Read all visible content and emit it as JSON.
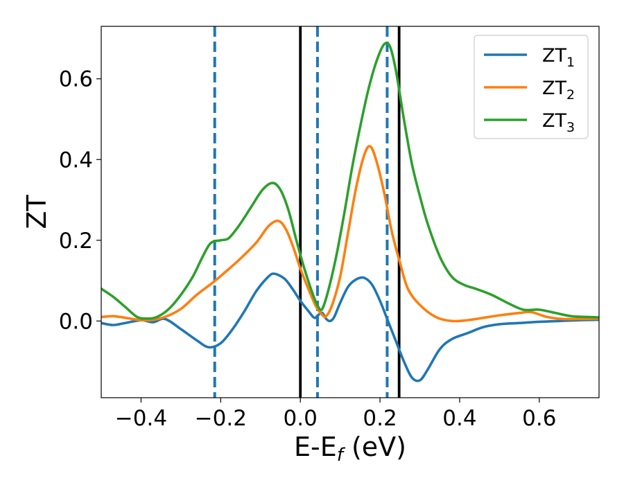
{
  "chart_data": {
    "type": "line",
    "title": "",
    "xlabel": "E-E",
    "xlabel_sub": "f",
    "xlabel_unit": "(eV)",
    "ylabel": "ZT",
    "xlim": [
      -0.5,
      0.75
    ],
    "ylim": [
      -0.19,
      0.73
    ],
    "xticks": [
      -0.4,
      -0.2,
      0.0,
      0.2,
      0.4,
      0.6
    ],
    "xtick_labels": [
      "−0.4",
      "−0.2",
      "0.0",
      "0.2",
      "0.4",
      "0.6"
    ],
    "yticks": [
      0.0,
      0.2,
      0.4,
      0.6
    ],
    "ytick_labels": [
      "0.0",
      "0.2",
      "0.4",
      "0.6"
    ],
    "grid": false,
    "legend_position": "top-right",
    "vlines": [
      {
        "x": -0.215,
        "style": "dashed",
        "color": "#1f77b4"
      },
      {
        "x": 0.043,
        "style": "dashed",
        "color": "#1f77b4"
      },
      {
        "x": 0.218,
        "style": "dashed",
        "color": "#1f77b4"
      },
      {
        "x": 0.0,
        "style": "solid",
        "color": "#000000"
      },
      {
        "x": 0.248,
        "style": "solid",
        "color": "#000000"
      }
    ],
    "series": [
      {
        "name": "ZT",
        "name_sub": "1",
        "color": "#1f77b4",
        "points": [
          [
            -0.5,
            -0.005
          ],
          [
            -0.47,
            -0.01
          ],
          [
            -0.44,
            -0.005
          ],
          [
            -0.4,
            0.002
          ],
          [
            -0.37,
            -0.003
          ],
          [
            -0.34,
            0.005
          ],
          [
            -0.3,
            -0.02
          ],
          [
            -0.26,
            -0.048
          ],
          [
            -0.23,
            -0.065
          ],
          [
            -0.2,
            -0.055
          ],
          [
            -0.17,
            -0.02
          ],
          [
            -0.14,
            0.025
          ],
          [
            -0.11,
            0.075
          ],
          [
            -0.08,
            0.11
          ],
          [
            -0.065,
            0.117
          ],
          [
            -0.04,
            0.105
          ],
          [
            -0.02,
            0.08
          ],
          [
            0.0,
            0.05
          ],
          [
            0.02,
            0.025
          ],
          [
            0.035,
            0.008
          ],
          [
            0.045,
            0.015
          ],
          [
            0.055,
            0.02
          ],
          [
            0.065,
            0.005
          ],
          [
            0.075,
            0.0
          ],
          [
            0.085,
            0.01
          ],
          [
            0.1,
            0.045
          ],
          [
            0.12,
            0.085
          ],
          [
            0.14,
            0.103
          ],
          [
            0.16,
            0.107
          ],
          [
            0.18,
            0.09
          ],
          [
            0.2,
            0.05
          ],
          [
            0.22,
            0.0
          ],
          [
            0.24,
            -0.05
          ],
          [
            0.26,
            -0.1
          ],
          [
            0.28,
            -0.14
          ],
          [
            0.3,
            -0.147
          ],
          [
            0.32,
            -0.12
          ],
          [
            0.35,
            -0.07
          ],
          [
            0.38,
            -0.045
          ],
          [
            0.42,
            -0.03
          ],
          [
            0.46,
            -0.015
          ],
          [
            0.5,
            -0.008
          ],
          [
            0.55,
            -0.005
          ],
          [
            0.6,
            -0.002
          ],
          [
            0.65,
            0.0
          ],
          [
            0.7,
            0.002
          ],
          [
            0.75,
            0.003
          ]
        ]
      },
      {
        "name": "ZT",
        "name_sub": "2",
        "color": "#ff7f0e",
        "points": [
          [
            -0.5,
            0.01
          ],
          [
            -0.47,
            0.012
          ],
          [
            -0.44,
            0.008
          ],
          [
            -0.4,
            0.002
          ],
          [
            -0.37,
            0.003
          ],
          [
            -0.34,
            0.01
          ],
          [
            -0.3,
            0.03
          ],
          [
            -0.26,
            0.065
          ],
          [
            -0.22,
            0.095
          ],
          [
            -0.19,
            0.12
          ],
          [
            -0.15,
            0.155
          ],
          [
            -0.11,
            0.195
          ],
          [
            -0.08,
            0.235
          ],
          [
            -0.055,
            0.248
          ],
          [
            -0.035,
            0.225
          ],
          [
            -0.015,
            0.175
          ],
          [
            0.0,
            0.13
          ],
          [
            0.02,
            0.08
          ],
          [
            0.04,
            0.035
          ],
          [
            0.055,
            0.015
          ],
          [
            0.065,
            0.012
          ],
          [
            0.08,
            0.04
          ],
          [
            0.1,
            0.11
          ],
          [
            0.12,
            0.22
          ],
          [
            0.14,
            0.33
          ],
          [
            0.16,
            0.41
          ],
          [
            0.175,
            0.433
          ],
          [
            0.19,
            0.4
          ],
          [
            0.21,
            0.32
          ],
          [
            0.23,
            0.22
          ],
          [
            0.25,
            0.145
          ],
          [
            0.27,
            0.08
          ],
          [
            0.3,
            0.04
          ],
          [
            0.34,
            0.01
          ],
          [
            0.38,
            0.0
          ],
          [
            0.42,
            0.002
          ],
          [
            0.46,
            0.008
          ],
          [
            0.5,
            0.014
          ],
          [
            0.55,
            0.02
          ],
          [
            0.58,
            0.022
          ],
          [
            0.62,
            0.01
          ],
          [
            0.66,
            0.005
          ],
          [
            0.7,
            0.005
          ],
          [
            0.75,
            0.006
          ]
        ]
      },
      {
        "name": "ZT",
        "name_sub": "3",
        "color": "#2ca02c",
        "points": [
          [
            -0.5,
            0.08
          ],
          [
            -0.47,
            0.06
          ],
          [
            -0.44,
            0.035
          ],
          [
            -0.41,
            0.01
          ],
          [
            -0.385,
            0.006
          ],
          [
            -0.36,
            0.01
          ],
          [
            -0.33,
            0.03
          ],
          [
            -0.3,
            0.065
          ],
          [
            -0.27,
            0.11
          ],
          [
            -0.245,
            0.16
          ],
          [
            -0.225,
            0.193
          ],
          [
            -0.2,
            0.2
          ],
          [
            -0.18,
            0.205
          ],
          [
            -0.155,
            0.235
          ],
          [
            -0.125,
            0.28
          ],
          [
            -0.095,
            0.325
          ],
          [
            -0.07,
            0.342
          ],
          [
            -0.05,
            0.325
          ],
          [
            -0.03,
            0.275
          ],
          [
            -0.01,
            0.2
          ],
          [
            0.01,
            0.13
          ],
          [
            0.03,
            0.07
          ],
          [
            0.045,
            0.035
          ],
          [
            0.055,
            0.03
          ],
          [
            0.07,
            0.075
          ],
          [
            0.09,
            0.16
          ],
          [
            0.11,
            0.265
          ],
          [
            0.13,
            0.38
          ],
          [
            0.15,
            0.48
          ],
          [
            0.17,
            0.57
          ],
          [
            0.19,
            0.64
          ],
          [
            0.21,
            0.685
          ],
          [
            0.225,
            0.68
          ],
          [
            0.24,
            0.62
          ],
          [
            0.26,
            0.5
          ],
          [
            0.28,
            0.39
          ],
          [
            0.3,
            0.31
          ],
          [
            0.32,
            0.24
          ],
          [
            0.35,
            0.16
          ],
          [
            0.38,
            0.11
          ],
          [
            0.41,
            0.09
          ],
          [
            0.44,
            0.08
          ],
          [
            0.48,
            0.065
          ],
          [
            0.52,
            0.045
          ],
          [
            0.56,
            0.028
          ],
          [
            0.6,
            0.028
          ],
          [
            0.64,
            0.02
          ],
          [
            0.68,
            0.012
          ],
          [
            0.72,
            0.01
          ],
          [
            0.75,
            0.009
          ]
        ]
      }
    ]
  }
}
